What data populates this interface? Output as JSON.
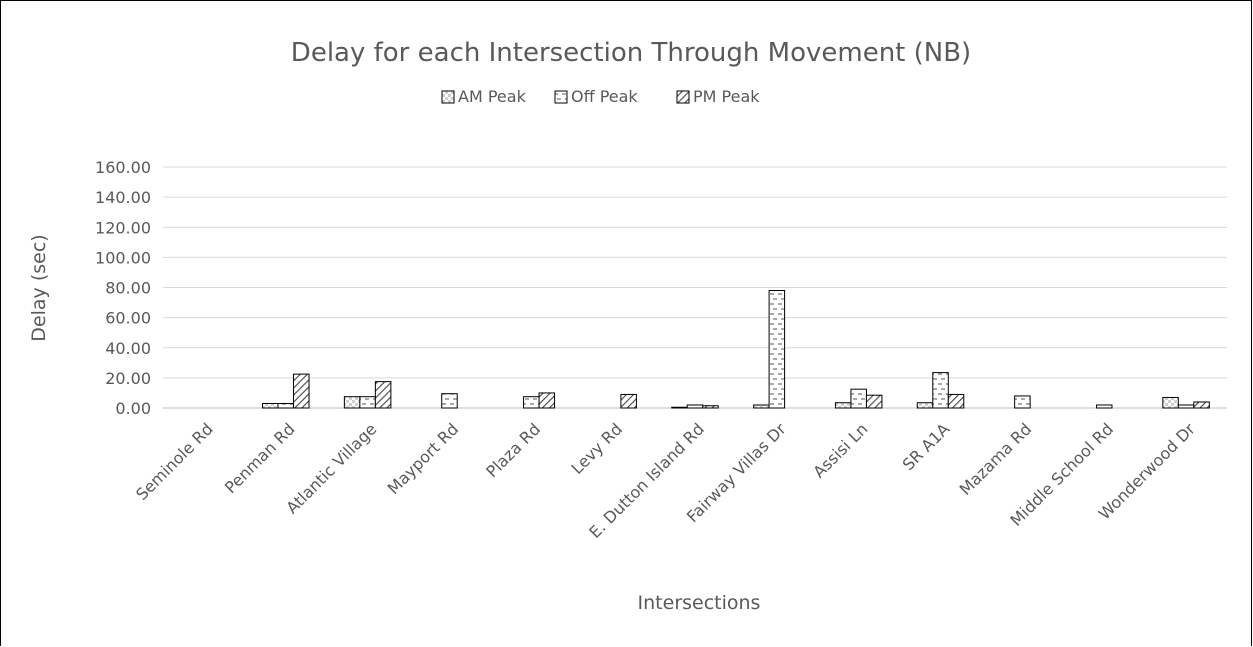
{
  "chart_data": {
    "type": "bar",
    "title": "Delay for each Intersection Through Movement (NB)",
    "xlabel": "Intersections",
    "ylabel": "Delay (sec)",
    "ylim": [
      0,
      160
    ],
    "yticks": [
      "0.00",
      "20.00",
      "40.00",
      "60.00",
      "80.00",
      "100.00",
      "120.00",
      "140.00",
      "160.00"
    ],
    "grid": true,
    "legend_position": "top",
    "categories": [
      "Seminole Rd",
      "Penman Rd",
      "Atlantic Village",
      "Mayport Rd",
      "Plaza Rd",
      "Levy Rd",
      "E. Dutton Island Rd",
      "Fairway Villas Dr",
      "Assisi Ln",
      "SR A1A",
      "Mazama Rd",
      "Middle School Rd",
      "Wonderwood Dr"
    ],
    "series": [
      {
        "name": "AM Peak",
        "pattern": "checker",
        "values": [
          0,
          3,
          7.5,
          0,
          0,
          0,
          0.5,
          2,
          3.5,
          3.5,
          0,
          0,
          7
        ]
      },
      {
        "name": "Off Peak",
        "pattern": "dashes",
        "values": [
          0,
          3,
          7.5,
          9.5,
          7.5,
          0,
          2,
          78,
          12.5,
          23.5,
          8,
          2,
          2
        ]
      },
      {
        "name": "PM Peak",
        "pattern": "diagonal",
        "values": [
          0,
          22.5,
          17.5,
          0,
          10,
          9,
          1.5,
          0,
          8.5,
          9,
          0,
          0,
          4
        ]
      }
    ],
    "colors": {
      "text": "#595959",
      "grid": "#d9d9d9",
      "bar_stroke": "#000000",
      "frame": "#000000"
    }
  }
}
